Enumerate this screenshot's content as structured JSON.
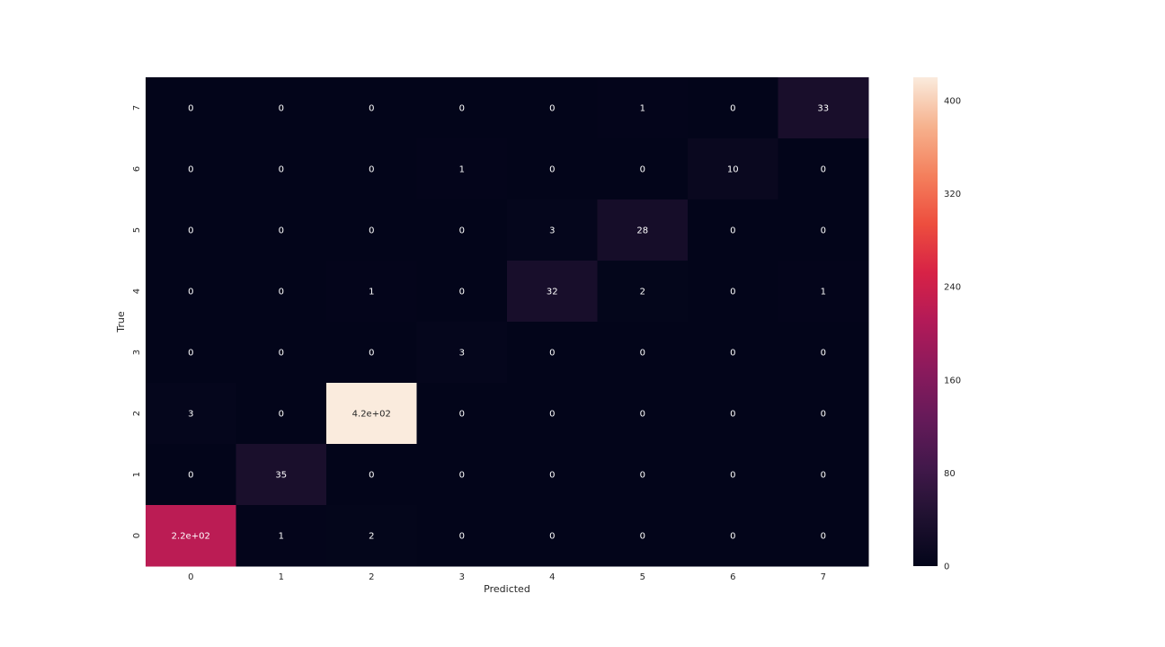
{
  "chart_data": {
    "type": "heatmap",
    "title": "",
    "xlabel": "Predicted",
    "ylabel": "True",
    "x_categories": [
      "0",
      "1",
      "2",
      "3",
      "4",
      "5",
      "6",
      "7"
    ],
    "y_categories_top_to_bottom": [
      "7",
      "6",
      "5",
      "4",
      "3",
      "2",
      "1",
      "0"
    ],
    "values": [
      [
        0,
        0,
        0,
        0,
        0,
        1,
        0,
        33
      ],
      [
        0,
        0,
        0,
        1,
        0,
        0,
        10,
        0
      ],
      [
        0,
        0,
        0,
        0,
        3,
        28,
        0,
        0
      ],
      [
        0,
        0,
        1,
        0,
        32,
        2,
        0,
        1
      ],
      [
        0,
        0,
        0,
        3,
        0,
        0,
        0,
        0
      ],
      [
        3,
        0,
        420,
        0,
        0,
        0,
        0,
        0
      ],
      [
        0,
        35,
        0,
        0,
        0,
        0,
        0,
        0
      ],
      [
        220,
        1,
        2,
        0,
        0,
        0,
        0,
        0
      ]
    ],
    "annotations": [
      [
        "0",
        "0",
        "0",
        "0",
        "0",
        "1",
        "0",
        "33"
      ],
      [
        "0",
        "0",
        "0",
        "1",
        "0",
        "0",
        "10",
        "0"
      ],
      [
        "0",
        "0",
        "0",
        "0",
        "3",
        "28",
        "0",
        "0"
      ],
      [
        "0",
        "0",
        "1",
        "0",
        "32",
        "2",
        "0",
        "1"
      ],
      [
        "0",
        "0",
        "0",
        "3",
        "0",
        "0",
        "0",
        "0"
      ],
      [
        "3",
        "0",
        "4.2e+02",
        "0",
        "0",
        "0",
        "0",
        "0"
      ],
      [
        "0",
        "35",
        "0",
        "0",
        "0",
        "0",
        "0",
        "0"
      ],
      [
        "2.2e+02",
        "1",
        "2",
        "0",
        "0",
        "0",
        "0",
        "0"
      ]
    ],
    "colormap": "rocket",
    "vmin": 0,
    "vmax": 420,
    "colorbar_ticks": [
      0,
      80,
      160,
      240,
      320,
      400
    ],
    "colorbar_tick_labels": [
      "0",
      "80",
      "160",
      "240",
      "320",
      "400"
    ],
    "grid": false
  }
}
